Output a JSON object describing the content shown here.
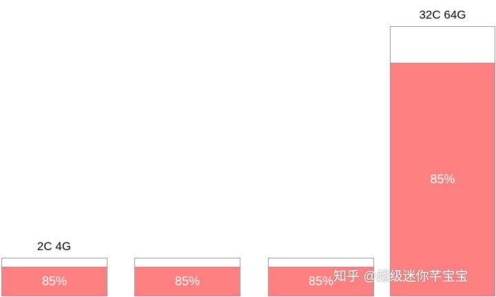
{
  "bars": [
    {
      "label": "2C 4G",
      "value": "85%",
      "fill_fraction": 0.85
    },
    {
      "label": "",
      "value": "85%",
      "fill_fraction": 0.85
    },
    {
      "label": "",
      "value": "85%",
      "fill_fraction": 0.85
    },
    {
      "label": "32C 64G",
      "value": "85%",
      "fill_fraction": 0.85
    }
  ],
  "colors": {
    "used": "#ff8080",
    "border": "#999999"
  },
  "watermark": "知乎 @超级迷你芊宝宝"
}
